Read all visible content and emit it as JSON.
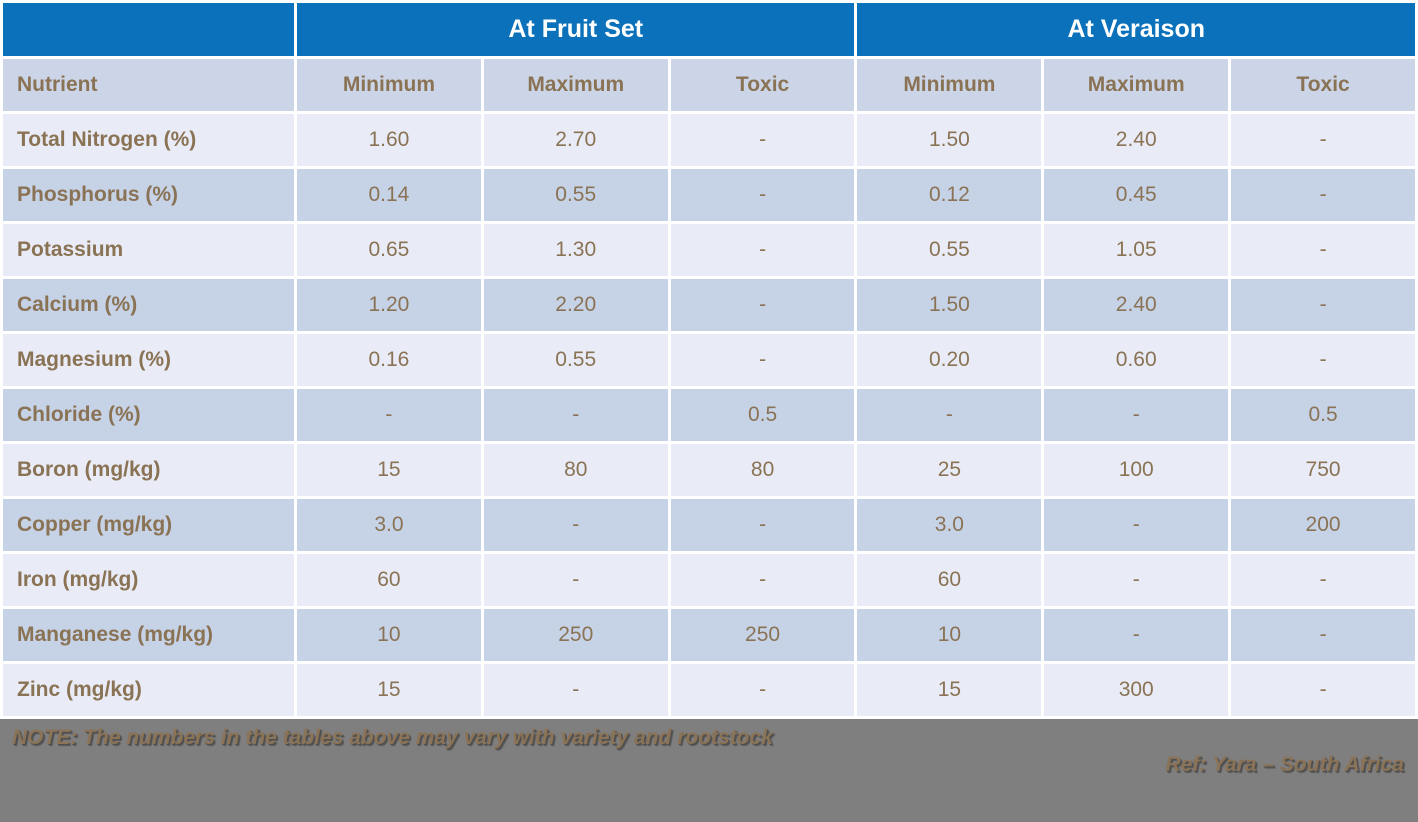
{
  "chart_data": {
    "type": "table",
    "column_groups": [
      {
        "label": "",
        "span": 1
      },
      {
        "label": "At Fruit Set",
        "span": 3
      },
      {
        "label": "At Veraison",
        "span": 3
      }
    ],
    "columns": [
      "Nutrient",
      "Minimum",
      "Maximum",
      "Toxic",
      "Minimum",
      "Maximum",
      "Toxic"
    ],
    "rows": [
      [
        "Total Nitrogen (%)",
        "1.60",
        "2.70",
        "-",
        "1.50",
        "2.40",
        "-"
      ],
      [
        "Phosphorus (%)",
        "0.14",
        "0.55",
        "-",
        "0.12",
        "0.45",
        "-"
      ],
      [
        "Potassium",
        "0.65",
        "1.30",
        "-",
        "0.55",
        "1.05",
        "-"
      ],
      [
        "Calcium (%)",
        "1.20",
        "2.20",
        "-",
        "1.50",
        "2.40",
        "-"
      ],
      [
        "Magnesium (%)",
        "0.16",
        "0.55",
        "-",
        "0.20",
        "0.60",
        "-"
      ],
      [
        "Chloride (%)",
        "-",
        "-",
        "0.5",
        "-",
        "-",
        "0.5"
      ],
      [
        "Boron (mg/kg)",
        "15",
        "80",
        "80",
        "25",
        "100",
        "750"
      ],
      [
        "Copper (mg/kg)",
        "3.0",
        "-",
        "-",
        "3.0",
        "-",
        "200"
      ],
      [
        "Iron (mg/kg)",
        "60",
        "-",
        "-",
        "60",
        "-",
        "-"
      ],
      [
        "Manganese (mg/kg)",
        "10",
        "250",
        "250",
        "10",
        "-",
        "-"
      ],
      [
        "Zinc (mg/kg)",
        "15",
        "-",
        "-",
        "15",
        "300",
        "-"
      ]
    ]
  },
  "footer": {
    "note": "NOTE: The numbers in the tables above may vary with variety and rootstock",
    "reference": "Ref: Yara – South Africa"
  },
  "colors": {
    "group_header_blue": "#0a71ba",
    "column_header_bg": "#ccd5e8",
    "row_light": "#e9ecf6",
    "row_dark": "#c6d2e6",
    "text_brown": "#8a7355",
    "footer_gray": "#7f7f7f",
    "grid_white": "#ffffff"
  }
}
